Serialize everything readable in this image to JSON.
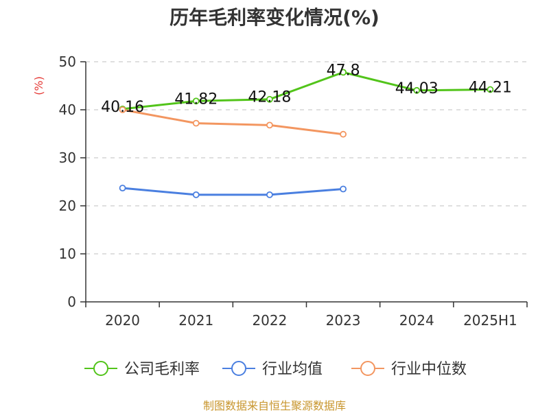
{
  "chart_data": {
    "type": "line",
    "title": "历年毛利率变化情况(%)",
    "ylabel": "(%)",
    "ylim": [
      0,
      50
    ],
    "yticks": [
      0,
      10,
      20,
      30,
      40,
      50
    ],
    "grid": true,
    "legend_position": "bottom",
    "categories": [
      "2020",
      "2021",
      "2022",
      "2023",
      "2024",
      "2025H1"
    ],
    "series": [
      {
        "name": "公司毛利率",
        "color": "#52c41a",
        "values": [
          40.16,
          41.82,
          42.18,
          47.8,
          44.03,
          44.21
        ],
        "labels": [
          "40.16",
          "41.82",
          "42.18",
          "47.8",
          "44.03",
          "44.21"
        ]
      },
      {
        "name": "行业均值",
        "color": "#4a7fe0",
        "values": [
          23.7,
          22.3,
          22.3,
          23.5,
          null,
          null
        ]
      },
      {
        "name": "行业中位数",
        "color": "#f39660",
        "values": [
          40.0,
          37.2,
          36.8,
          34.9,
          null,
          null
        ]
      }
    ]
  },
  "ylabel_color": "#e53935",
  "source_note": "制图数据来自恒生聚源数据库"
}
